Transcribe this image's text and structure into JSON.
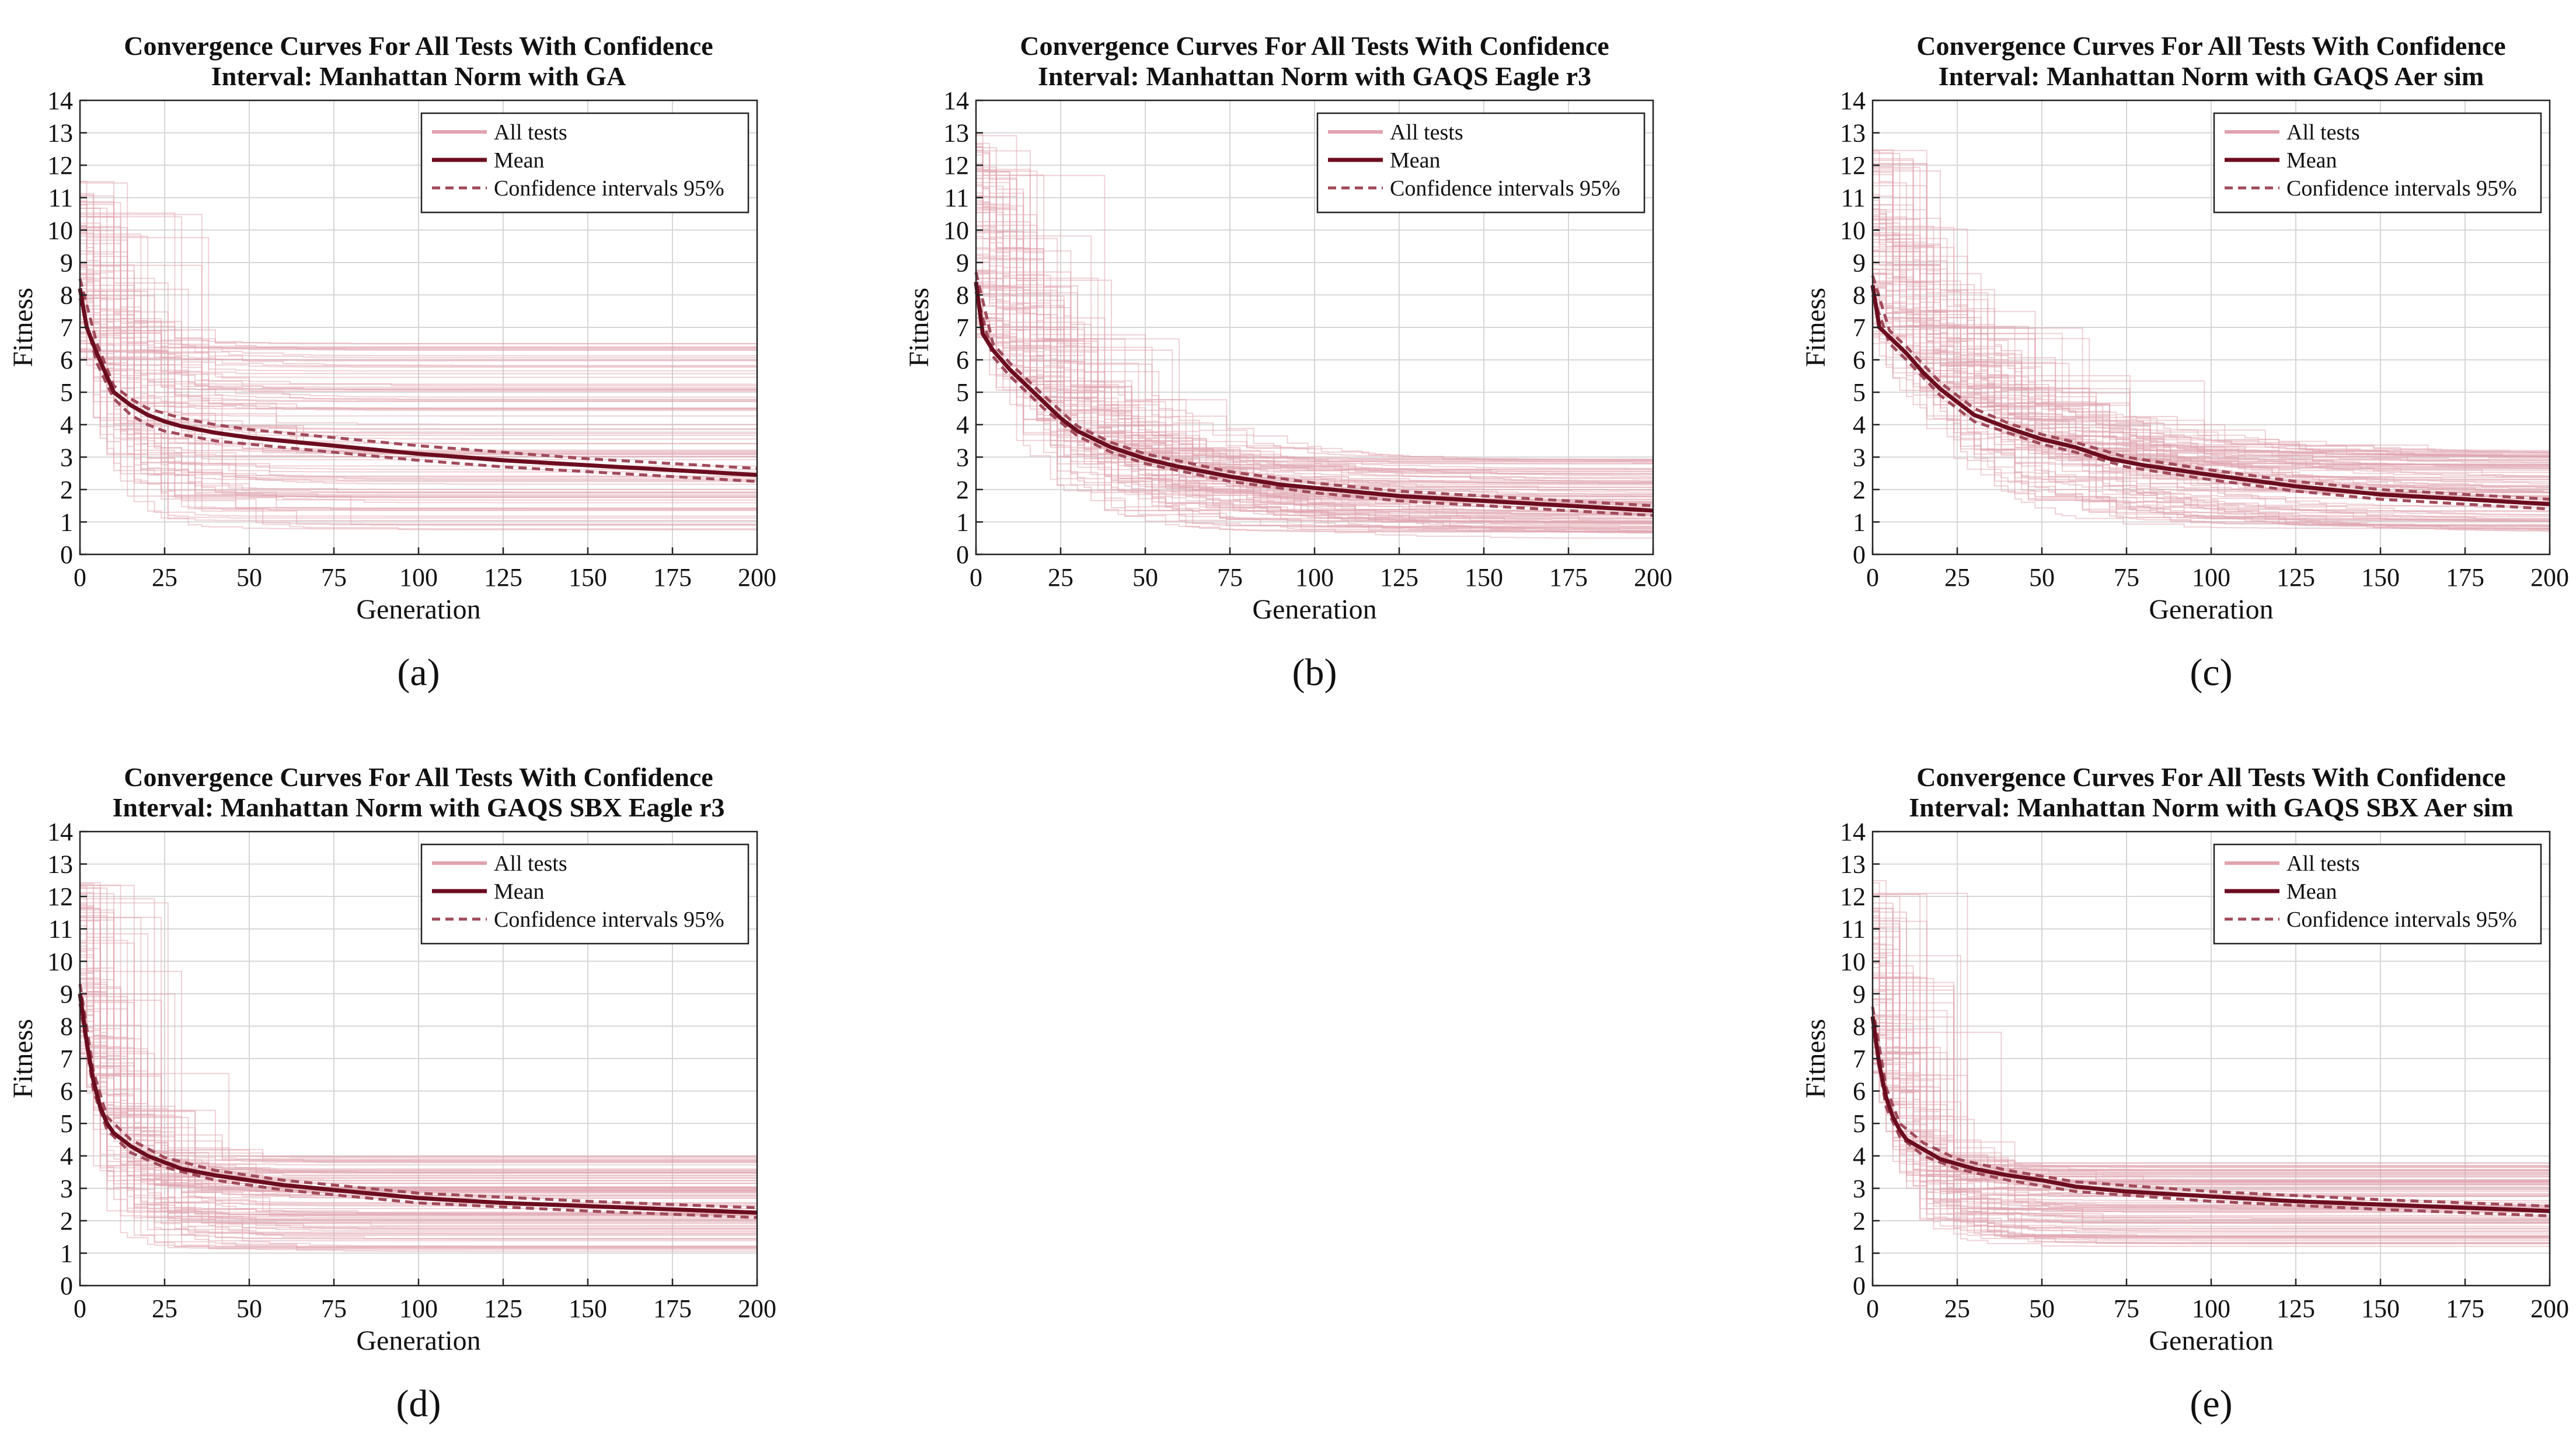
{
  "style": {
    "all_tests_color": "#e0a3ad",
    "mean_color": "#6b0d1f",
    "ci_color": "#a04a5a",
    "grid_color": "#d6d6d6",
    "axis_color": "#222222"
  },
  "chart_data": [
    {
      "type": "line",
      "panel_label": "(a)",
      "title_line1": "Convergence Curves For All Tests With Confidence",
      "title_line2": "Interval: Manhattan Norm with GA",
      "xlabel": "Generation",
      "ylabel": "Fitness",
      "xlim": [
        0,
        200
      ],
      "ylim": [
        0,
        14
      ],
      "xticks": [
        0,
        25,
        50,
        75,
        100,
        125,
        150,
        175,
        200
      ],
      "yticks": [
        0,
        1,
        2,
        3,
        4,
        5,
        6,
        7,
        8,
        9,
        10,
        11,
        12,
        13,
        14
      ],
      "legend": [
        "All tests",
        "Mean",
        "Confidence intervals 95%"
      ],
      "legend_position": "top-right",
      "grid": true,
      "mean": {
        "x": [
          0,
          2,
          5,
          10,
          15,
          20,
          25,
          30,
          40,
          50,
          60,
          75,
          90,
          100,
          125,
          150,
          175,
          200
        ],
        "y": [
          8.2,
          7.0,
          6.2,
          5.0,
          4.6,
          4.3,
          4.1,
          3.95,
          3.75,
          3.6,
          3.5,
          3.35,
          3.2,
          3.1,
          2.9,
          2.75,
          2.6,
          2.45
        ]
      },
      "ci_upper": {
        "x": [
          0,
          5,
          10,
          15,
          20,
          25,
          30,
          40,
          50,
          60,
          75,
          90,
          100,
          125,
          150,
          175,
          200
        ],
        "y": [
          8.5,
          6.5,
          5.2,
          4.8,
          4.5,
          4.35,
          4.2,
          4.0,
          3.85,
          3.75,
          3.6,
          3.45,
          3.35,
          3.15,
          2.95,
          2.8,
          2.65
        ]
      },
      "ci_lower": {
        "x": [
          0,
          5,
          10,
          15,
          20,
          25,
          30,
          40,
          50,
          60,
          75,
          90,
          100,
          125,
          150,
          175,
          200
        ],
        "y": [
          7.9,
          5.9,
          4.8,
          4.3,
          4.0,
          3.8,
          3.7,
          3.5,
          3.4,
          3.3,
          3.15,
          3.0,
          2.9,
          2.7,
          2.55,
          2.4,
          2.25
        ]
      },
      "all_tests": {
        "count": 90,
        "start_range": [
          6.0,
          11.5
        ],
        "end_range": [
          0.7,
          6.5
        ],
        "decay": 10
      }
    },
    {
      "type": "line",
      "panel_label": "(b)",
      "title_line1": "Convergence Curves For All Tests With Confidence",
      "title_line2": "Interval: Manhattan Norm with GAQS Eagle r3",
      "xlabel": "Generation",
      "ylabel": "Fitness",
      "xlim": [
        0,
        200
      ],
      "ylim": [
        0,
        14
      ],
      "xticks": [
        0,
        25,
        50,
        75,
        100,
        125,
        150,
        175,
        200
      ],
      "yticks": [
        0,
        1,
        2,
        3,
        4,
        5,
        6,
        7,
        8,
        9,
        10,
        11,
        12,
        13,
        14
      ],
      "legend": [
        "All tests",
        "Mean",
        "Confidence intervals 95%"
      ],
      "legend_position": "top-right",
      "grid": true,
      "mean": {
        "x": [
          0,
          2,
          5,
          10,
          15,
          20,
          25,
          30,
          40,
          50,
          60,
          75,
          90,
          100,
          125,
          150,
          175,
          200
        ],
        "y": [
          8.4,
          6.8,
          6.3,
          5.7,
          5.2,
          4.7,
          4.2,
          3.8,
          3.3,
          2.95,
          2.7,
          2.4,
          2.15,
          2.05,
          1.8,
          1.65,
          1.5,
          1.35
        ]
      },
      "ci_upper": {
        "x": [
          0,
          5,
          10,
          20,
          30,
          40,
          50,
          75,
          100,
          125,
          150,
          175,
          200
        ],
        "y": [
          8.7,
          6.5,
          5.9,
          4.9,
          3.95,
          3.45,
          3.1,
          2.55,
          2.2,
          1.95,
          1.8,
          1.65,
          1.5
        ]
      },
      "ci_lower": {
        "x": [
          0,
          5,
          10,
          20,
          30,
          40,
          50,
          75,
          100,
          125,
          150,
          175,
          200
        ],
        "y": [
          8.1,
          6.1,
          5.5,
          4.5,
          3.65,
          3.15,
          2.8,
          2.25,
          1.9,
          1.65,
          1.5,
          1.35,
          1.2
        ]
      },
      "all_tests": {
        "count": 90,
        "start_range": [
          6.5,
          13.0
        ],
        "end_range": [
          0.4,
          3.0
        ],
        "decay": 25
      }
    },
    {
      "type": "line",
      "panel_label": "(c)",
      "title_line1": "Convergence Curves For All Tests With Confidence",
      "title_line2": "Interval: Manhattan Norm with GAQS Aer sim",
      "xlabel": "Generation",
      "ylabel": "Fitness",
      "xlim": [
        0,
        200
      ],
      "ylim": [
        0,
        14
      ],
      "xticks": [
        0,
        25,
        50,
        75,
        100,
        125,
        150,
        175,
        200
      ],
      "yticks": [
        0,
        1,
        2,
        3,
        4,
        5,
        6,
        7,
        8,
        9,
        10,
        11,
        12,
        13,
        14
      ],
      "legend": [
        "All tests",
        "Mean",
        "Confidence intervals 95%"
      ],
      "legend_position": "top-right",
      "grid": true,
      "mean": {
        "x": [
          0,
          2,
          5,
          10,
          15,
          20,
          25,
          30,
          40,
          50,
          60,
          70,
          80,
          100,
          125,
          150,
          175,
          200
        ],
        "y": [
          8.3,
          7.0,
          6.7,
          6.2,
          5.6,
          5.1,
          4.7,
          4.3,
          3.9,
          3.55,
          3.3,
          2.95,
          2.75,
          2.45,
          2.1,
          1.85,
          1.7,
          1.55
        ]
      },
      "ci_upper": {
        "x": [
          0,
          5,
          10,
          20,
          30,
          40,
          50,
          60,
          75,
          100,
          125,
          150,
          175,
          200
        ],
        "y": [
          8.6,
          6.9,
          6.4,
          5.3,
          4.5,
          4.05,
          3.7,
          3.45,
          3.0,
          2.6,
          2.25,
          2.0,
          1.85,
          1.7
        ]
      },
      "ci_lower": {
        "x": [
          0,
          5,
          10,
          20,
          30,
          40,
          50,
          60,
          75,
          100,
          125,
          150,
          175,
          200
        ],
        "y": [
          8.0,
          6.5,
          6.0,
          4.9,
          4.1,
          3.75,
          3.4,
          3.15,
          2.7,
          2.3,
          1.95,
          1.7,
          1.55,
          1.4
        ]
      },
      "all_tests": {
        "count": 90,
        "start_range": [
          6.5,
          12.5
        ],
        "end_range": [
          0.6,
          3.2
        ],
        "decay": 30
      }
    },
    {
      "type": "line",
      "panel_label": "(d)",
      "title_line1": "Convergence Curves For All Tests With Confidence",
      "title_line2": "Interval: Manhattan Norm with GAQS SBX Eagle r3",
      "xlabel": "Generation",
      "ylabel": "Fitness",
      "xlim": [
        0,
        200
      ],
      "ylim": [
        0,
        14
      ],
      "xticks": [
        0,
        25,
        50,
        75,
        100,
        125,
        150,
        175,
        200
      ],
      "yticks": [
        0,
        1,
        2,
        3,
        4,
        5,
        6,
        7,
        8,
        9,
        10,
        11,
        12,
        13,
        14
      ],
      "legend": [
        "All tests",
        "Mean",
        "Confidence intervals 95%"
      ],
      "legend_position": "top-right",
      "grid": true,
      "mean": {
        "x": [
          0,
          2,
          4,
          6,
          8,
          10,
          15,
          20,
          25,
          30,
          40,
          50,
          60,
          75,
          100,
          125,
          150,
          175,
          200
        ],
        "y": [
          9.0,
          7.5,
          6.3,
          5.5,
          5.0,
          4.7,
          4.3,
          4.0,
          3.8,
          3.6,
          3.4,
          3.25,
          3.1,
          2.95,
          2.7,
          2.55,
          2.45,
          2.35,
          2.25
        ]
      },
      "ci_upper": {
        "x": [
          0,
          4,
          8,
          15,
          25,
          40,
          60,
          100,
          150,
          200
        ],
        "y": [
          9.3,
          6.6,
          5.2,
          4.5,
          3.95,
          3.55,
          3.25,
          2.85,
          2.6,
          2.4
        ]
      },
      "ci_lower": {
        "x": [
          0,
          4,
          8,
          15,
          25,
          40,
          60,
          100,
          150,
          200
        ],
        "y": [
          8.7,
          6.0,
          4.8,
          4.1,
          3.65,
          3.25,
          2.95,
          2.55,
          2.3,
          2.1
        ]
      },
      "all_tests": {
        "count": 90,
        "start_range": [
          7.0,
          12.5
        ],
        "end_range": [
          1.0,
          4.0
        ],
        "decay": 8
      }
    },
    {
      "type": "line",
      "panel_label": "(e)",
      "title_line1": "Convergence Curves For All Tests With Confidence",
      "title_line2": "Interval: Manhattan Norm with GAQS SBX Aer sim",
      "xlabel": "Generation",
      "ylabel": "Fitness",
      "xlim": [
        0,
        200
      ],
      "ylim": [
        0,
        14
      ],
      "xticks": [
        0,
        25,
        50,
        75,
        100,
        125,
        150,
        175,
        200
      ],
      "yticks": [
        0,
        1,
        2,
        3,
        4,
        5,
        6,
        7,
        8,
        9,
        10,
        11,
        12,
        13,
        14
      ],
      "legend": [
        "All tests",
        "Mean",
        "Confidence intervals 95%"
      ],
      "legend_position": "top-right",
      "grid": true,
      "mean": {
        "x": [
          0,
          2,
          4,
          6,
          8,
          10,
          15,
          20,
          25,
          30,
          40,
          50,
          60,
          75,
          100,
          125,
          150,
          175,
          200
        ],
        "y": [
          8.3,
          6.8,
          5.8,
          5.2,
          4.8,
          4.5,
          4.2,
          3.9,
          3.75,
          3.6,
          3.4,
          3.25,
          3.05,
          2.9,
          2.75,
          2.6,
          2.5,
          2.4,
          2.3
        ]
      },
      "ci_upper": {
        "x": [
          0,
          4,
          8,
          15,
          25,
          40,
          60,
          100,
          150,
          200
        ],
        "y": [
          8.6,
          6.1,
          5.0,
          4.4,
          3.9,
          3.55,
          3.2,
          2.9,
          2.65,
          2.45
        ]
      },
      "ci_lower": {
        "x": [
          0,
          4,
          8,
          15,
          25,
          40,
          60,
          100,
          150,
          200
        ],
        "y": [
          8.0,
          5.5,
          4.6,
          4.0,
          3.6,
          3.25,
          2.9,
          2.6,
          2.35,
          2.15
        ]
      },
      "all_tests": {
        "count": 90,
        "start_range": [
          6.5,
          12.5
        ],
        "end_range": [
          1.2,
          3.8
        ],
        "decay": 8
      }
    }
  ]
}
